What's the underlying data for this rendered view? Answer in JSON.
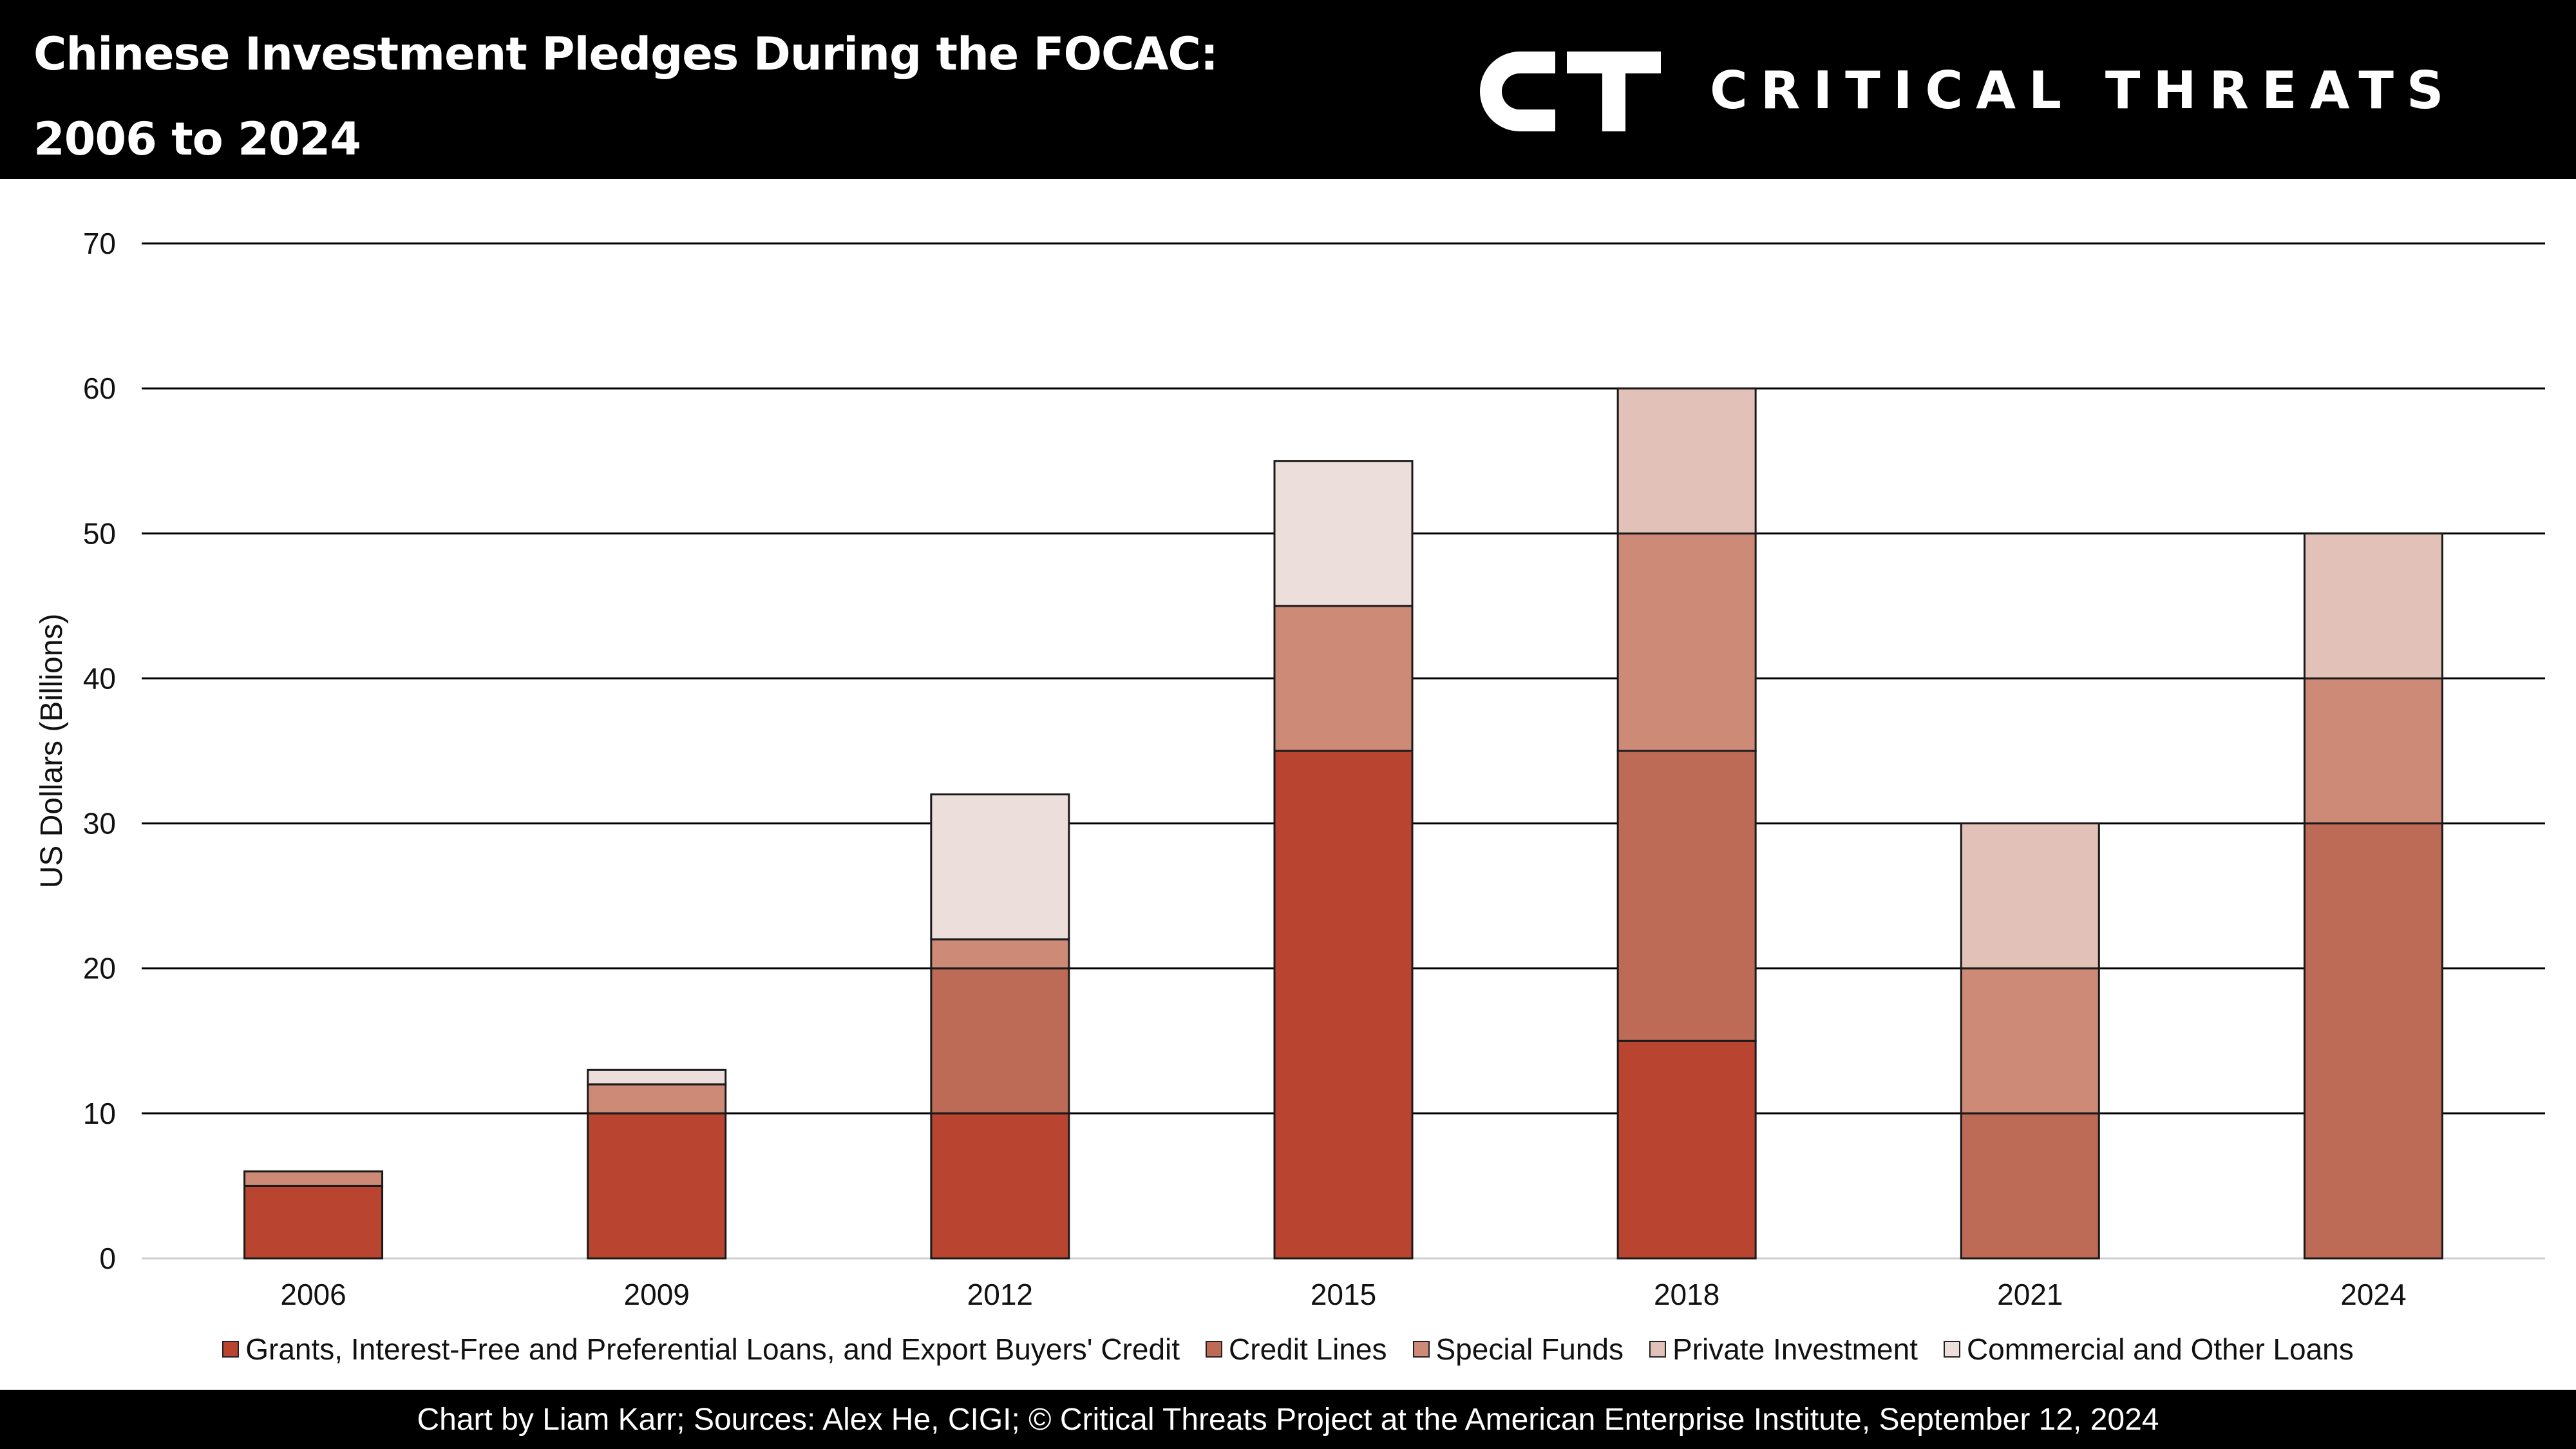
{
  "header": {
    "title_line1": "Chinese Investment Pledges During the FOCAC:",
    "title_line2": "2006 to 2024",
    "brand_mark": "CT",
    "brand_name": "CRITICAL THREATS"
  },
  "footer": {
    "credit": "Chart by Liam Karr; Sources: Alex He, CIGI; © Critical Threats Project at the American Enterprise Institute, September 12, 2024"
  },
  "chart_data": {
    "type": "bar",
    "stacked": true,
    "title": "Chinese Investment Pledges During the FOCAC: 2006 to 2024",
    "xlabel": "",
    "ylabel": "US Dollars (Billions)",
    "ylim": [
      0,
      70
    ],
    "yticks": [
      0,
      10,
      20,
      30,
      40,
      50,
      60,
      70
    ],
    "grid": true,
    "legend_position": "bottom",
    "categories": [
      "2006",
      "2009",
      "2012",
      "2015",
      "2018",
      "2021",
      "2024"
    ],
    "series": [
      {
        "name": "Grants, Interest-Free and Preferential Loans, and Export Buyers' Credit",
        "color": "#b94530",
        "values": [
          5,
          10,
          10,
          35,
          15,
          0,
          0
        ]
      },
      {
        "name": "Credit Lines",
        "color": "#bd6a56",
        "values": [
          0,
          0,
          10,
          0,
          20,
          10,
          30
        ]
      },
      {
        "name": "Special Funds",
        "color": "#cc8a77",
        "values": [
          1,
          2,
          2,
          10,
          15,
          10,
          10
        ]
      },
      {
        "name": "Private Investment",
        "color": "#e2c1b8",
        "values": [
          0,
          0,
          0,
          0,
          10,
          10,
          10
        ]
      },
      {
        "name": "Commercial and Other Loans",
        "color": "#ebdedb",
        "values": [
          0,
          1,
          10,
          10,
          0,
          0,
          0
        ]
      }
    ]
  }
}
